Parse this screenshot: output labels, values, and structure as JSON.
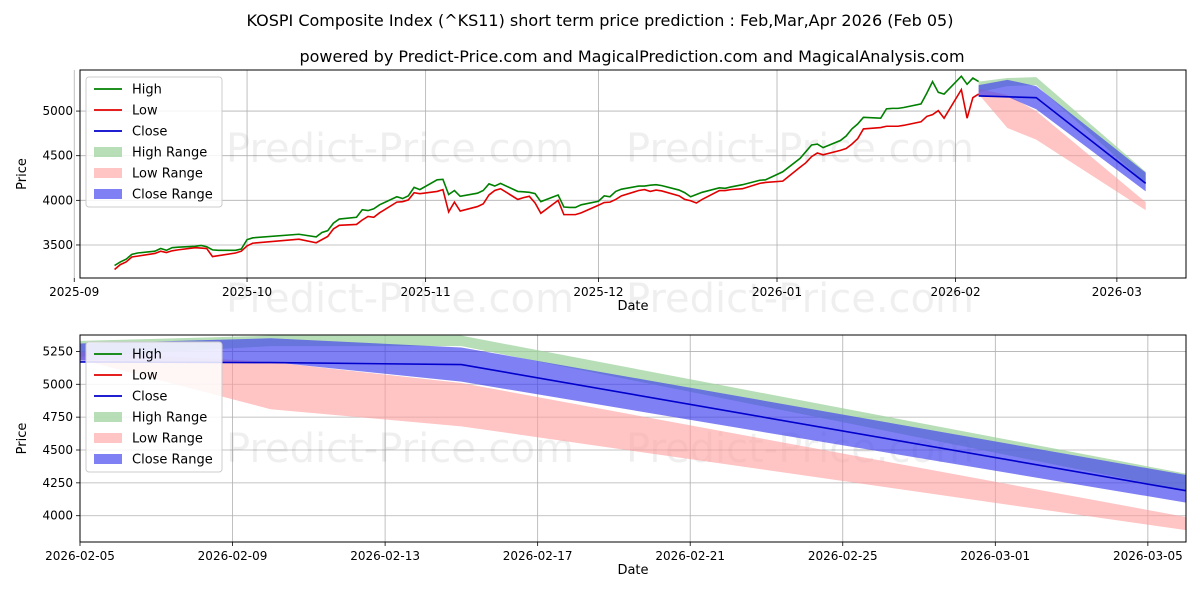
{
  "title_line1": "KOSPI Composite Index (^KS11) short term price prediction : Feb,Mar,Apr 2026 (Feb 05)",
  "title_line2": "powered by Predict-Price.com and MagicalPrediction.com and MagicalAnalysis.com",
  "watermark": "Predict-Price.com",
  "colors": {
    "high": "#008000",
    "low": "#e00000",
    "close": "#0000cc",
    "high_range": "#9fd39f",
    "low_range": "#ff9c9c",
    "close_range": "#3c3cf0"
  },
  "chart_data": [
    {
      "type": "line",
      "id": "top",
      "xlabel": "Date",
      "ylabel": "Price",
      "xlim": [
        "2025-09-02",
        "2026-03-13"
      ],
      "ylim": [
        3130,
        5460
      ],
      "x_ticks": [
        "2025-09-01",
        "2025-10-01",
        "2025-11-01",
        "2025-12-01",
        "2026-01-01",
        "2026-02-01",
        "2026-03-01"
      ],
      "x_tick_labels": [
        "2025-09",
        "2025-10",
        "2025-11",
        "2025-12",
        "2026-01",
        "2026-02",
        "2026-03"
      ],
      "y_ticks": [
        3500,
        4000,
        4500,
        5000
      ],
      "legend": [
        "High",
        "Low",
        "Close",
        "High Range",
        "Low Range",
        "Close Range"
      ],
      "legend_position": "upper-left",
      "history": {
        "dates": [
          "2025-09-08",
          "2025-09-09",
          "2025-09-10",
          "2025-09-11",
          "2025-09-12",
          "2025-09-15",
          "2025-09-16",
          "2025-09-17",
          "2025-09-18",
          "2025-09-19",
          "2025-09-22",
          "2025-09-23",
          "2025-09-24",
          "2025-09-25",
          "2025-09-26",
          "2025-09-29",
          "2025-09-30",
          "2025-10-01",
          "2025-10-02",
          "2025-10-10",
          "2025-10-13",
          "2025-10-14",
          "2025-10-15",
          "2025-10-16",
          "2025-10-17",
          "2025-10-20",
          "2025-10-21",
          "2025-10-22",
          "2025-10-23",
          "2025-10-24",
          "2025-10-27",
          "2025-10-28",
          "2025-10-29",
          "2025-10-30",
          "2025-10-31",
          "2025-11-03",
          "2025-11-04",
          "2025-11-05",
          "2025-11-06",
          "2025-11-07",
          "2025-11-10",
          "2025-11-11",
          "2025-11-12",
          "2025-11-13",
          "2025-11-14",
          "2025-11-17",
          "2025-11-18",
          "2025-11-19",
          "2025-11-20",
          "2025-11-21",
          "2025-11-24",
          "2025-11-25",
          "2025-11-26",
          "2025-11-27",
          "2025-11-28",
          "2025-12-01",
          "2025-12-02",
          "2025-12-03",
          "2025-12-04",
          "2025-12-05",
          "2025-12-08",
          "2025-12-09",
          "2025-12-10",
          "2025-12-11",
          "2025-12-12",
          "2025-12-15",
          "2025-12-16",
          "2025-12-17",
          "2025-12-18",
          "2025-12-19",
          "2025-12-22",
          "2025-12-23",
          "2025-12-24",
          "2025-12-26",
          "2025-12-29",
          "2025-12-30",
          "2026-01-02",
          "2026-01-05",
          "2026-01-06",
          "2026-01-07",
          "2026-01-08",
          "2026-01-09",
          "2026-01-12",
          "2026-01-13",
          "2026-01-14",
          "2026-01-15",
          "2026-01-16",
          "2026-01-19",
          "2026-01-20",
          "2026-01-21",
          "2026-01-22",
          "2026-01-23",
          "2026-01-26",
          "2026-01-27",
          "2026-01-28",
          "2026-01-29",
          "2026-01-30",
          "2026-02-02",
          "2026-02-03",
          "2026-02-04",
          "2026-02-05"
        ],
        "high": [
          3270,
          3310,
          3340,
          3395,
          3410,
          3430,
          3460,
          3440,
          3470,
          3475,
          3485,
          3495,
          3480,
          3445,
          3440,
          3440,
          3455,
          3560,
          3580,
          3620,
          3590,
          3640,
          3660,
          3745,
          3790,
          3810,
          3895,
          3885,
          3905,
          3950,
          4040,
          4020,
          4050,
          4145,
          4120,
          4230,
          4235,
          4065,
          4110,
          4045,
          4080,
          4110,
          4185,
          4160,
          4190,
          4100,
          4095,
          4090,
          4075,
          3985,
          4060,
          3925,
          3920,
          3920,
          3950,
          3990,
          4050,
          4040,
          4100,
          4125,
          4160,
          4160,
          4170,
          4175,
          4165,
          4115,
          4085,
          4040,
          4065,
          4090,
          4140,
          4135,
          4150,
          4175,
          4225,
          4230,
          4320,
          4470,
          4545,
          4620,
          4630,
          4590,
          4670,
          4720,
          4800,
          4855,
          4930,
          4920,
          5025,
          5030,
          5030,
          5040,
          5080,
          5200,
          5330,
          5210,
          5190,
          5390,
          5300,
          5370,
          5330
        ],
        "low": [
          3225,
          3280,
          3310,
          3365,
          3375,
          3405,
          3430,
          3415,
          3435,
          3445,
          3470,
          3465,
          3460,
          3370,
          3380,
          3410,
          3430,
          3490,
          3520,
          3565,
          3525,
          3560,
          3595,
          3680,
          3720,
          3730,
          3780,
          3820,
          3810,
          3860,
          3980,
          3985,
          4005,
          4085,
          4075,
          4100,
          4120,
          3870,
          3980,
          3880,
          3930,
          3960,
          4060,
          4110,
          4130,
          4010,
          4030,
          4045,
          3970,
          3855,
          4000,
          3840,
          3840,
          3840,
          3860,
          3945,
          3975,
          3980,
          4010,
          4050,
          4110,
          4120,
          4100,
          4115,
          4105,
          4050,
          4010,
          3995,
          3970,
          4010,
          4110,
          4110,
          4120,
          4130,
          4190,
          4200,
          4215,
          4370,
          4420,
          4490,
          4530,
          4510,
          4560,
          4580,
          4630,
          4690,
          4800,
          4815,
          4830,
          4830,
          4830,
          4840,
          4880,
          4940,
          4960,
          5005,
          4920,
          5240,
          4920,
          5150,
          5190
        ],
        "close": []
      },
      "forecast": {
        "dates": [
          "2026-02-05",
          "2026-02-10",
          "2026-02-15",
          "2026-03-06"
        ],
        "high_range": {
          "upper": [
            5330,
            5370,
            5380,
            4320
          ],
          "lower": [
            5210,
            5280,
            5290,
            4190
          ]
        },
        "low_range": {
          "upper": [
            5250,
            5180,
            5000,
            3980
          ],
          "lower": [
            5190,
            4810,
            4680,
            3890
          ]
        },
        "close_range": {
          "upper": [
            5290,
            5350,
            5280,
            4310
          ],
          "lower": [
            5170,
            5160,
            5020,
            4100
          ]
        },
        "close": [
          5170,
          5160,
          5150,
          4190
        ]
      }
    },
    {
      "type": "line",
      "id": "bottom",
      "xlabel": "Date",
      "ylabel": "Price",
      "xlim": [
        "2026-02-05",
        "2026-03-06"
      ],
      "ylim": [
        3800,
        5375
      ],
      "x_ticks": [
        "2026-02-05",
        "2026-02-09",
        "2026-02-13",
        "2026-02-17",
        "2026-02-21",
        "2026-02-25",
        "2026-03-01",
        "2026-03-05"
      ],
      "x_tick_labels": [
        "2026-02-05",
        "2026-02-09",
        "2026-02-13",
        "2026-02-17",
        "2026-02-21",
        "2026-02-25",
        "2026-03-01",
        "2026-03-05"
      ],
      "y_ticks": [
        4000,
        4250,
        4500,
        4750,
        5000,
        5250
      ],
      "legend": [
        "High",
        "Low",
        "Close",
        "High Range",
        "Low Range",
        "Close Range"
      ],
      "legend_position": "upper-left",
      "forecast": {
        "dates": [
          "2026-02-05",
          "2026-02-10",
          "2026-02-15",
          "2026-03-06"
        ],
        "high_range": {
          "upper": [
            5330,
            5370,
            5370,
            4320
          ],
          "lower": [
            5210,
            5290,
            5290,
            4190
          ]
        },
        "low_range": {
          "upper": [
            5250,
            5170,
            5010,
            3990
          ],
          "lower": [
            5190,
            4810,
            4680,
            3890
          ]
        },
        "close_range": {
          "upper": [
            5310,
            5350,
            5280,
            4310
          ],
          "lower": [
            5180,
            5170,
            5020,
            4100
          ]
        },
        "close": [
          5170,
          5165,
          5150,
          4190
        ]
      }
    }
  ]
}
